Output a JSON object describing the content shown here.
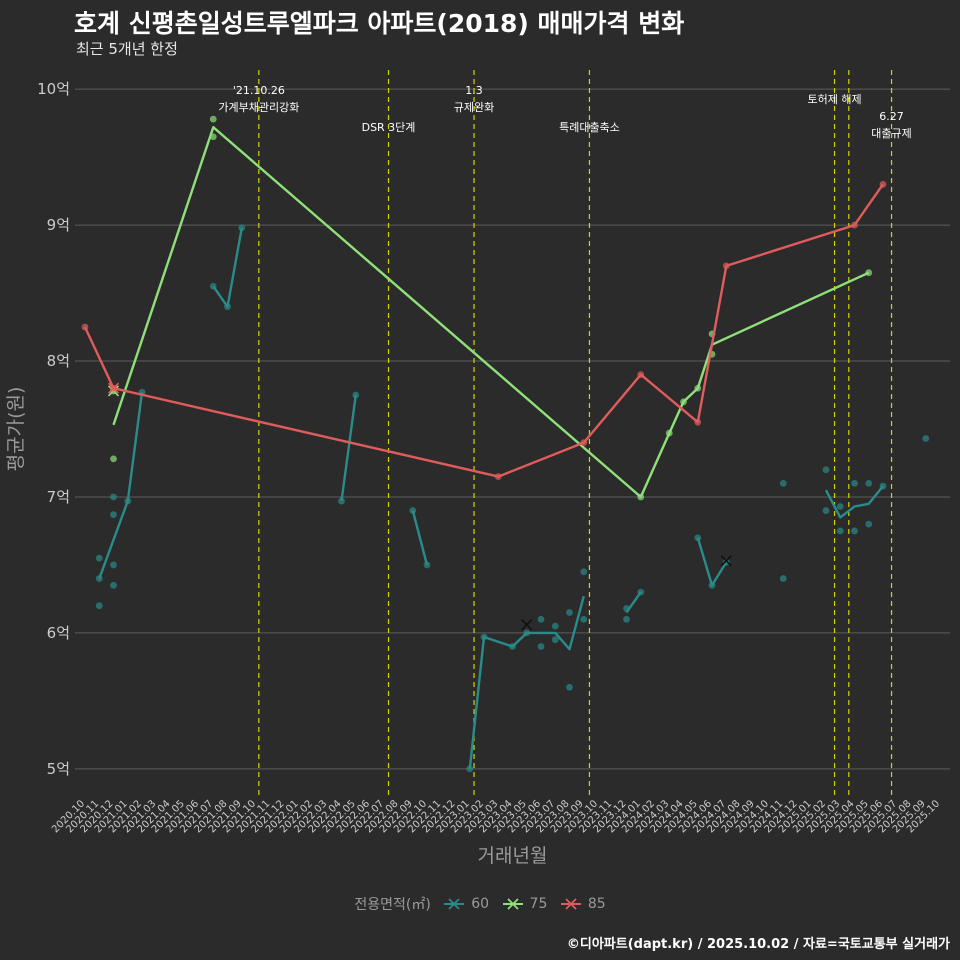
{
  "header": {
    "title": "호계 신평촌일성트루엘파크 아파트(2018) 매매가격 변화",
    "subtitle": "최근 5개년 한정"
  },
  "footer": {
    "caption": "©디아파트(dapt.kr) / 2025.10.02 / 자료=국토교통부 실거래가"
  },
  "colors": {
    "background": "#2b2b2b",
    "grid": "#5c5c5c",
    "annotation_line": "#d4d400",
    "axis_text": "#cccccc",
    "axis_title": "#9a9a9a",
    "series_60": "#2a8c8a",
    "series_75": "#8fe07a",
    "series_85": "#e05c5c"
  },
  "legend": {
    "title": "전용면적(㎡)",
    "items": [
      {
        "label": "60",
        "color": "#2a8c8a"
      },
      {
        "label": "75",
        "color": "#8fe07a"
      },
      {
        "label": "85",
        "color": "#e05c5c"
      }
    ]
  },
  "chart_data": {
    "type": "line",
    "title": "호계 신평촌일성트루엘파크 아파트(2018) 매매가격 변화",
    "subtitle": "최근 5개년 한정",
    "xlabel": "거래년월",
    "ylabel": "평균가(원)",
    "ylim": [
      4.8,
      10.2
    ],
    "yticks": [
      {
        "value": 5,
        "label": "5억"
      },
      {
        "value": 6,
        "label": "6억"
      },
      {
        "value": 7,
        "label": "7억"
      },
      {
        "value": 8,
        "label": "8억"
      },
      {
        "value": 9,
        "label": "9억"
      },
      {
        "value": 10,
        "label": "10억"
      }
    ],
    "x_categories": [
      "2020.10",
      "2020.11",
      "2020.12",
      "2021.01",
      "2021.02",
      "2021.03",
      "2021.04",
      "2021.05",
      "2021.06",
      "2021.07",
      "2021.08",
      "2021.09",
      "2021.10",
      "2021.11",
      "2021.12",
      "2022.01",
      "2022.02",
      "2022.03",
      "2022.04",
      "2022.05",
      "2022.06",
      "2022.07",
      "2022.08",
      "2022.09",
      "2022.10",
      "2022.11",
      "2022.12",
      "2023.01",
      "2023.02",
      "2023.03",
      "2023.04",
      "2023.05",
      "2023.06",
      "2023.07",
      "2023.08",
      "2023.09",
      "2023.10",
      "2023.11",
      "2023.12",
      "2024.01",
      "2024.02",
      "2024.03",
      "2024.04",
      "2024.05",
      "2024.06",
      "2024.07",
      "2024.08",
      "2024.09",
      "2024.10",
      "2024.11",
      "2024.12",
      "2025.01",
      "2025.02",
      "2025.03",
      "2025.04",
      "2025.05",
      "2025.06",
      "2025.07",
      "2025.08",
      "2025.09",
      "2025.10"
    ],
    "tick_labels": [
      "2020.10",
      "2020.11",
      "2020.12",
      "2021.01",
      "2021.02",
      "2021.03",
      "2021.04",
      "2021.05",
      "2021.06",
      "2021.07",
      "2021.08",
      "2021.09",
      "2021.10",
      "2021.11",
      "2021.12",
      "2022.01",
      "2022.02",
      "2022.03",
      "2022.04",
      "2022.05",
      "2022.06",
      "2022.07",
      "2022.08",
      "2022.09",
      "2022.10",
      "2022.11",
      "2022.12",
      "2023.01",
      "2023.02",
      "2023.03",
      "2023.04",
      "2023.05",
      "2023.06",
      "2023.07",
      "2023.08",
      "2023.09",
      "2023.10",
      "2023.11",
      "2023.12",
      "2024.01",
      "2024.02",
      "2024.03",
      "2024.04",
      "2024.05",
      "2024.06",
      "2024.07",
      "2024.08",
      "2024.09",
      "2024.10",
      "2024.11",
      "2024.12",
      "2025.01",
      "2025.02",
      "2025.03",
      "2025.04",
      "2025.05",
      "2025.06",
      "2025.07",
      "2025.08",
      "2025.09",
      "2025.10"
    ],
    "annotations": [
      {
        "x": 12.2,
        "lines": [
          "'21.10.26",
          "가계부채관리강화"
        ],
        "level": 0
      },
      {
        "x": 21.3,
        "lines": [
          "DSR 3단계"
        ],
        "level": 2
      },
      {
        "x": 27.3,
        "lines": [
          "1.3",
          "규제완화"
        ],
        "level": 0
      },
      {
        "x": 35.4,
        "lines": [
          "특례대출축소"
        ],
        "level": 2
      },
      {
        "x": 52.6,
        "lines": [
          "토허제 해제"
        ],
        "level": 1
      },
      {
        "x": 53.6,
        "lines": [],
        "level": 1
      },
      {
        "x": 56.6,
        "lines": [
          "6.27",
          "대출규제"
        ],
        "level": 3
      }
    ],
    "series": [
      {
        "name": "60",
        "color": "#2a8c8a",
        "segments": [
          [
            [
              1,
              6.4
            ],
            [
              3,
              6.97
            ],
            [
              4,
              7.77
            ]
          ],
          [
            [
              9,
              8.55
            ],
            [
              10,
              8.4
            ],
            [
              11,
              8.98
            ]
          ],
          [
            [
              18,
              6.97
            ],
            [
              19,
              7.75
            ]
          ],
          [
            [
              23,
              6.9
            ],
            [
              24,
              6.5
            ]
          ],
          [
            [
              27,
              5.0
            ],
            [
              28,
              5.97
            ],
            [
              30,
              5.9
            ],
            [
              31,
              6.0
            ],
            [
              32,
              6.0
            ],
            [
              33,
              6.0
            ],
            [
              34,
              5.88
            ],
            [
              35,
              6.27
            ]
          ],
          [
            [
              38,
              6.15
            ],
            [
              39,
              6.3
            ]
          ],
          [
            [
              43,
              6.7
            ],
            [
              44,
              6.35
            ],
            [
              45,
              6.52
            ]
          ],
          [
            [
              52,
              7.05
            ],
            [
              53,
              6.85
            ],
            [
              54,
              6.93
            ],
            [
              55,
              6.95
            ],
            [
              56,
              7.08
            ]
          ]
        ],
        "points": [
          [
            1,
            6.2
          ],
          [
            1,
            6.4
          ],
          [
            1,
            6.55
          ],
          [
            2,
            6.35
          ],
          [
            2,
            6.5
          ],
          [
            2,
            6.87
          ],
          [
            2,
            7.0
          ],
          [
            3,
            6.97
          ],
          [
            4,
            7.77
          ],
          [
            9,
            8.55
          ],
          [
            10,
            8.4
          ],
          [
            11,
            8.98
          ],
          [
            18,
            6.97
          ],
          [
            19,
            7.75
          ],
          [
            23,
            6.9
          ],
          [
            24,
            6.5
          ],
          [
            27,
            5.0
          ],
          [
            28,
            5.97
          ],
          [
            30,
            5.9
          ],
          [
            31,
            6.0
          ],
          [
            32,
            5.9
          ],
          [
            32,
            6.1
          ],
          [
            33,
            5.95
          ],
          [
            33,
            6.05
          ],
          [
            34,
            5.6
          ],
          [
            34,
            6.15
          ],
          [
            35,
            6.1
          ],
          [
            35,
            6.45
          ],
          [
            38,
            6.1
          ],
          [
            38,
            6.18
          ],
          [
            39,
            6.3
          ],
          [
            43,
            6.7
          ],
          [
            44,
            6.35
          ],
          [
            45,
            6.52
          ],
          [
            49,
            7.1
          ],
          [
            49,
            6.4
          ],
          [
            52,
            6.9
          ],
          [
            52,
            7.2
          ],
          [
            53,
            6.75
          ],
          [
            53,
            6.93
          ],
          [
            54,
            6.75
          ],
          [
            54,
            7.1
          ],
          [
            55,
            6.8
          ],
          [
            55,
            7.1
          ],
          [
            56,
            7.08
          ],
          [
            59,
            7.43
          ]
        ],
        "x_marks": [
          [
            31,
            6.06
          ],
          [
            45,
            6.53
          ]
        ]
      },
      {
        "name": "75",
        "color": "#8fe07a",
        "segments": [
          [
            [
              2,
              7.53
            ],
            [
              9,
              9.72
            ],
            [
              39,
              7.0
            ],
            [
              41,
              7.47
            ],
            [
              42,
              7.7
            ],
            [
              43,
              7.8
            ],
            [
              44,
              8.12
            ],
            [
              55,
              8.65
            ]
          ]
        ],
        "points": [
          [
            2,
            7.78
          ],
          [
            2,
            7.28
          ],
          [
            9,
            9.78
          ],
          [
            9,
            9.65
          ],
          [
            39,
            7.0
          ],
          [
            41,
            7.47
          ],
          [
            42,
            7.7
          ],
          [
            43,
            7.8
          ],
          [
            44,
            8.05
          ],
          [
            44,
            8.2
          ],
          [
            55,
            8.65
          ]
        ],
        "x_marks": [
          [
            2,
            7.78
          ]
        ]
      },
      {
        "name": "85",
        "color": "#e05c5c",
        "segments": [
          [
            [
              0,
              8.25
            ],
            [
              2,
              7.8
            ],
            [
              29,
              7.15
            ],
            [
              35,
              7.4
            ],
            [
              39,
              7.9
            ],
            [
              43,
              7.55
            ],
            [
              45,
              8.7
            ],
            [
              54,
              9.0
            ],
            [
              56,
              9.3
            ]
          ]
        ],
        "points": [
          [
            0,
            8.25
          ],
          [
            2,
            7.8
          ],
          [
            29,
            7.15
          ],
          [
            35,
            7.4
          ],
          [
            39,
            7.9
          ],
          [
            43,
            7.55
          ],
          [
            45,
            8.7
          ],
          [
            54,
            9.0
          ],
          [
            56,
            9.3
          ]
        ],
        "x_marks": [
          [
            2,
            7.8
          ]
        ]
      }
    ]
  }
}
